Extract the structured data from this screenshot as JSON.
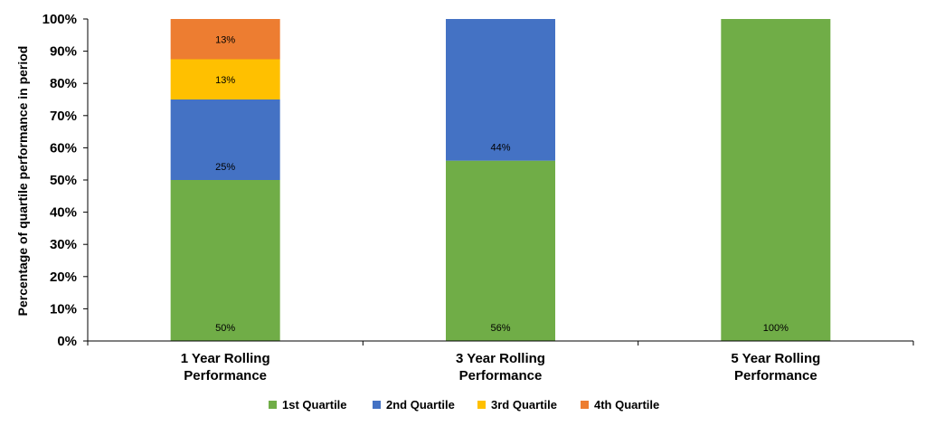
{
  "chart_data": {
    "type": "bar",
    "stacked": true,
    "categories": [
      [
        "1 Year Rolling",
        "Performance"
      ],
      [
        "3 Year Rolling",
        "Performance"
      ],
      [
        "5 Year Rolling",
        "Performance"
      ]
    ],
    "series": [
      {
        "name": "1st Quartile",
        "color": "#70AD47",
        "values": [
          50,
          56,
          100
        ],
        "labels": [
          "50%",
          "56%",
          "100%"
        ]
      },
      {
        "name": "2nd Quartile",
        "color": "#4472C4",
        "values": [
          25,
          44,
          0
        ],
        "labels": [
          "25%",
          "44%",
          ""
        ]
      },
      {
        "name": "3rd Quartile",
        "color": "#FFC000",
        "values": [
          12.5,
          0,
          0
        ],
        "labels": [
          "13%",
          "",
          ""
        ]
      },
      {
        "name": "4th Quartile",
        "color": "#ED7D31",
        "values": [
          12.5,
          0,
          0
        ],
        "labels": [
          "13%",
          "",
          ""
        ]
      }
    ],
    "ylabel": "Percentage of quartile performance in period",
    "ylim": [
      0,
      100
    ],
    "yticks": [
      "0%",
      "10%",
      "20%",
      "30%",
      "40%",
      "50%",
      "60%",
      "70%",
      "80%",
      "90%",
      "100%"
    ],
    "grid": false,
    "legend": "bottom"
  }
}
